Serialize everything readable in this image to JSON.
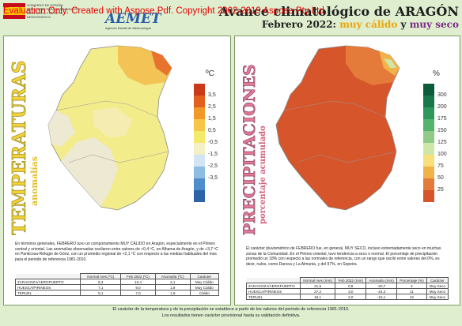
{
  "header": {
    "watermark": "Evaluation Only. Created with Aspose.Pdf. Copyright 2002-2019 Aspose Pty Ltd.",
    "ministry_text": "GOBIERNO DE ESPAÑA · MINISTERIO PARA LA TRANSICIÓN ECOLÓGICA Y EL RETO DEMOGRÁFICO",
    "agency_logo": "AEMET",
    "agency_name": "Agencia Estatal de Meteorología",
    "title": "Avance climatológico de ARAGÓN",
    "subtitle_prefix": "Febrero 2022:",
    "subtitle_warm": "muy cálido",
    "subtitle_and": "y",
    "subtitle_dry": "muy seco"
  },
  "temperature": {
    "title": "TEMPERATURAS",
    "subtitle": "anomalías",
    "legend_title": "ºC",
    "legend_labels": [
      "3,5",
      "2,5",
      "1,5",
      "0,5",
      "-0,5",
      "-1,5",
      "-2,5",
      "-3,5"
    ],
    "colors": [
      "#c83a1a",
      "#e1601f",
      "#f2972a",
      "#f7c548",
      "#f5e96a",
      "#f2f0c4",
      "#d2e5f2",
      "#8fbde1",
      "#4f8ec8",
      "#2d64a8"
    ],
    "description": "En términos generales, FEBRERO tuvo un comportamiento MUY CÁLIDO en Aragón, especialmente en el Pirineo central y oriental. Las anomalías observadas oscilaron entre valores de +0,4 ºC, en Alhama de Aragón, y de +3,7 ºC en Panticosa-Refugio de Góriz, con un promedio regional de +2,1 ºC con respecto a las medias habituales del mes para el periodo de referencia 1981-2010.",
    "table": {
      "headers": [
        "",
        "Normal mes (ºC)",
        "Feb 2022 (ºC)",
        "Anomalía (ºC)",
        "Carácter"
      ],
      "rows": [
        [
          "ZARAGOZA/AEROPUERTO",
          "8,3",
          "10,4",
          "2,1",
          "Muy Cálido"
        ],
        [
          "HUESCA/PIRINEOS",
          "7,1",
          "9,0",
          "1,9",
          "Muy Cálido"
        ],
        [
          "TERUEL",
          "5,1",
          "7,0",
          "1,9",
          "Cálido"
        ]
      ]
    }
  },
  "precipitation": {
    "title": "PRECIPITACIONES",
    "subtitle": "porcentaje acumulado",
    "legend_title": "%",
    "legend_labels": [
      "300",
      "200",
      "175",
      "150",
      "125",
      "100",
      "75",
      "50",
      "25"
    ],
    "colors": [
      "#0c5b3b",
      "#19784b",
      "#2e975b",
      "#54b46d",
      "#8fcb84",
      "#cfe6a9",
      "#f7e07a",
      "#f1b24a",
      "#e57b3a",
      "#d6552b"
    ],
    "description": "El carácter pluviométrico de FEBRERO fue, en general, MUY SECO, incluso extremadamente seco en muchas zonas de la Comunidad. En el Pirineo oriental, tuvo tendencia a seco o normal. El porcentaje de precipitación promedió un 18% con respecto a las normales de referencia, con un rango que osciló entre valores del 0%, es decir, nulos, como Daroca y La Almunia, y del 97%, en Sopeira.",
    "table": {
      "headers": [
        "",
        "Normal mes (mm)",
        "Feb 2022 (mm)",
        "Anomalía (mm)",
        "Porcentaje (%)",
        "Carácter"
      ],
      "rows": [
        [
          "ZARAGOZA/AEROPUERTO",
          "21,5",
          "0,8",
          "-20,7",
          "4",
          "Muy Seco"
        ],
        [
          "HUESCA/PIRINEOS",
          "27,2",
          "3,0",
          "-24,2",
          "11",
          "Muy Seco"
        ],
        [
          "TERUEL",
          "18,1",
          "2,0",
          "-16,1",
          "12",
          "Muy Seco"
        ]
      ]
    }
  },
  "footer": {
    "line1": "El carácter de la temperatura y de la precipitación se establece a partir de los valores del periodo de referencia 1981-2010.",
    "line2": "Los resultados tienen carácter provisional hasta su validación definitiva."
  }
}
